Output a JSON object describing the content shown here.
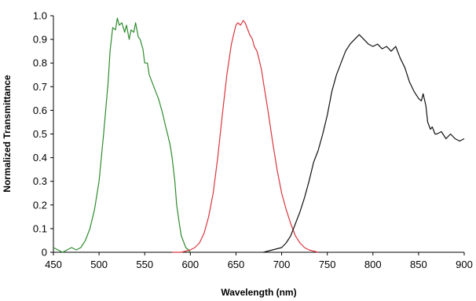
{
  "chart_data": {
    "type": "line",
    "title": "",
    "xlabel": "Wavelength (nm)",
    "ylabel": "Normalized Transmittance",
    "xlim": [
      450,
      900
    ],
    "ylim": [
      0,
      1.0
    ],
    "x_ticks": [
      450,
      500,
      550,
      600,
      650,
      700,
      750,
      800,
      850,
      900
    ],
    "y_ticks": [
      0,
      0.1,
      0.2,
      0.3,
      0.4,
      0.5,
      0.6,
      0.7,
      0.8,
      0.9,
      1.0
    ],
    "y_tick_labels": [
      "0",
      "0.1",
      "0.2",
      "0.3",
      "0.4",
      "0.5",
      "0.6",
      "0.7",
      "0.8",
      "0.9",
      "1.0"
    ],
    "grid": false,
    "legend": "none",
    "series": [
      {
        "color": "#2e8b2e",
        "x": [
          450,
          455,
          460,
          465,
          470,
          475,
          480,
          485,
          490,
          495,
          500,
          505,
          510,
          512,
          515,
          518,
          520,
          522,
          525,
          528,
          530,
          533,
          535,
          538,
          540,
          543,
          545,
          548,
          550,
          553,
          555,
          558,
          560,
          563,
          565,
          568,
          570,
          573,
          575,
          578,
          580,
          583,
          585,
          588,
          590,
          593,
          595,
          598,
          600
        ],
        "y": [
          0.02,
          0.01,
          0.0,
          0.01,
          0.02,
          0.01,
          0.02,
          0.05,
          0.1,
          0.18,
          0.3,
          0.5,
          0.72,
          0.85,
          0.95,
          0.94,
          0.99,
          0.96,
          0.97,
          0.93,
          0.96,
          0.9,
          0.94,
          0.93,
          0.97,
          0.91,
          0.9,
          0.86,
          0.8,
          0.8,
          0.75,
          0.72,
          0.7,
          0.67,
          0.65,
          0.61,
          0.58,
          0.53,
          0.5,
          0.45,
          0.4,
          0.3,
          0.2,
          0.12,
          0.07,
          0.04,
          0.02,
          0.01,
          0.0
        ]
      },
      {
        "color": "#d9363e",
        "x": [
          580,
          590,
          600,
          605,
          610,
          615,
          620,
          625,
          630,
          635,
          640,
          645,
          648,
          650,
          652,
          655,
          658,
          660,
          663,
          665,
          668,
          670,
          673,
          675,
          678,
          680,
          685,
          690,
          695,
          700,
          705,
          710,
          715,
          720,
          725,
          730,
          740
        ],
        "y": [
          0.0,
          0.0,
          0.01,
          0.02,
          0.04,
          0.08,
          0.15,
          0.25,
          0.4,
          0.58,
          0.75,
          0.88,
          0.93,
          0.96,
          0.97,
          0.96,
          0.98,
          0.97,
          0.94,
          0.92,
          0.9,
          0.87,
          0.85,
          0.82,
          0.77,
          0.72,
          0.6,
          0.47,
          0.35,
          0.25,
          0.18,
          0.12,
          0.07,
          0.04,
          0.02,
          0.01,
          0.0
        ]
      },
      {
        "color": "#111111",
        "x": [
          680,
          690,
          700,
          705,
          710,
          715,
          720,
          725,
          730,
          735,
          740,
          745,
          750,
          755,
          760,
          765,
          770,
          775,
          780,
          785,
          790,
          795,
          800,
          805,
          810,
          815,
          820,
          825,
          830,
          835,
          840,
          845,
          850,
          853,
          855,
          858,
          860,
          863,
          865,
          868,
          870,
          875,
          880,
          885,
          890,
          895,
          900
        ],
        "y": [
          0.0,
          0.01,
          0.02,
          0.04,
          0.07,
          0.12,
          0.17,
          0.23,
          0.3,
          0.38,
          0.43,
          0.5,
          0.58,
          0.68,
          0.75,
          0.8,
          0.85,
          0.88,
          0.9,
          0.92,
          0.9,
          0.88,
          0.87,
          0.88,
          0.86,
          0.87,
          0.85,
          0.87,
          0.82,
          0.78,
          0.72,
          0.68,
          0.65,
          0.64,
          0.67,
          0.62,
          0.55,
          0.52,
          0.53,
          0.5,
          0.5,
          0.51,
          0.48,
          0.5,
          0.48,
          0.47,
          0.48
        ]
      }
    ]
  }
}
